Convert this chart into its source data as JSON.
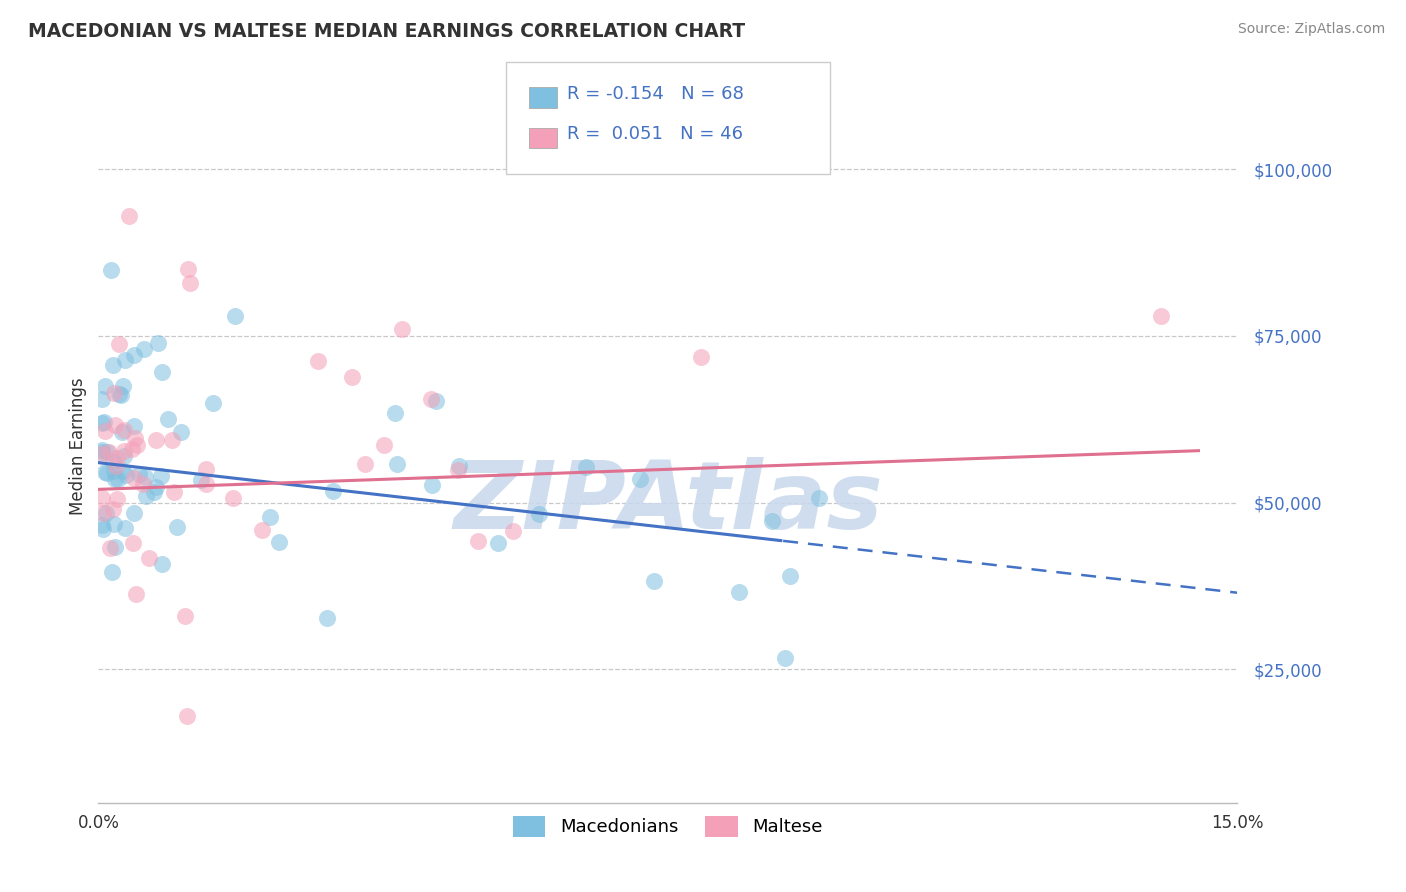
{
  "title": "MACEDONIAN VS MALTESE MEDIAN EARNINGS CORRELATION CHART",
  "source": "Source: ZipAtlas.com",
  "ylabel": "Median Earnings",
  "x_min": 0.0,
  "x_max": 15.0,
  "y_min": 5000,
  "y_max": 112000,
  "yticks": [
    25000,
    50000,
    75000,
    100000
  ],
  "ytick_labels": [
    "$25,000",
    "$50,000",
    "$75,000",
    "$100,000"
  ],
  "macedonian_color": "#7fbfdf",
  "maltese_color": "#f4a0b8",
  "macedonian_R": -0.154,
  "macedonian_N": 68,
  "maltese_R": 0.051,
  "maltese_N": 46,
  "trend_color_macedonian": "#4472c4",
  "trend_color_maltese": "#e07090",
  "legend_label_macedonian": "Macedonians",
  "legend_label_maltese": "Maltese",
  "background_color": "#ffffff",
  "grid_color": "#c8c8c8",
  "mac_trend_intercept": 56000,
  "mac_trend_slope": -1300,
  "malt_trend_intercept": 52000,
  "malt_trend_slope": 400,
  "mac_solid_end": 9.0,
  "watermark_text": "ZIPAtlas",
  "watermark_color": "#c8d8ec"
}
